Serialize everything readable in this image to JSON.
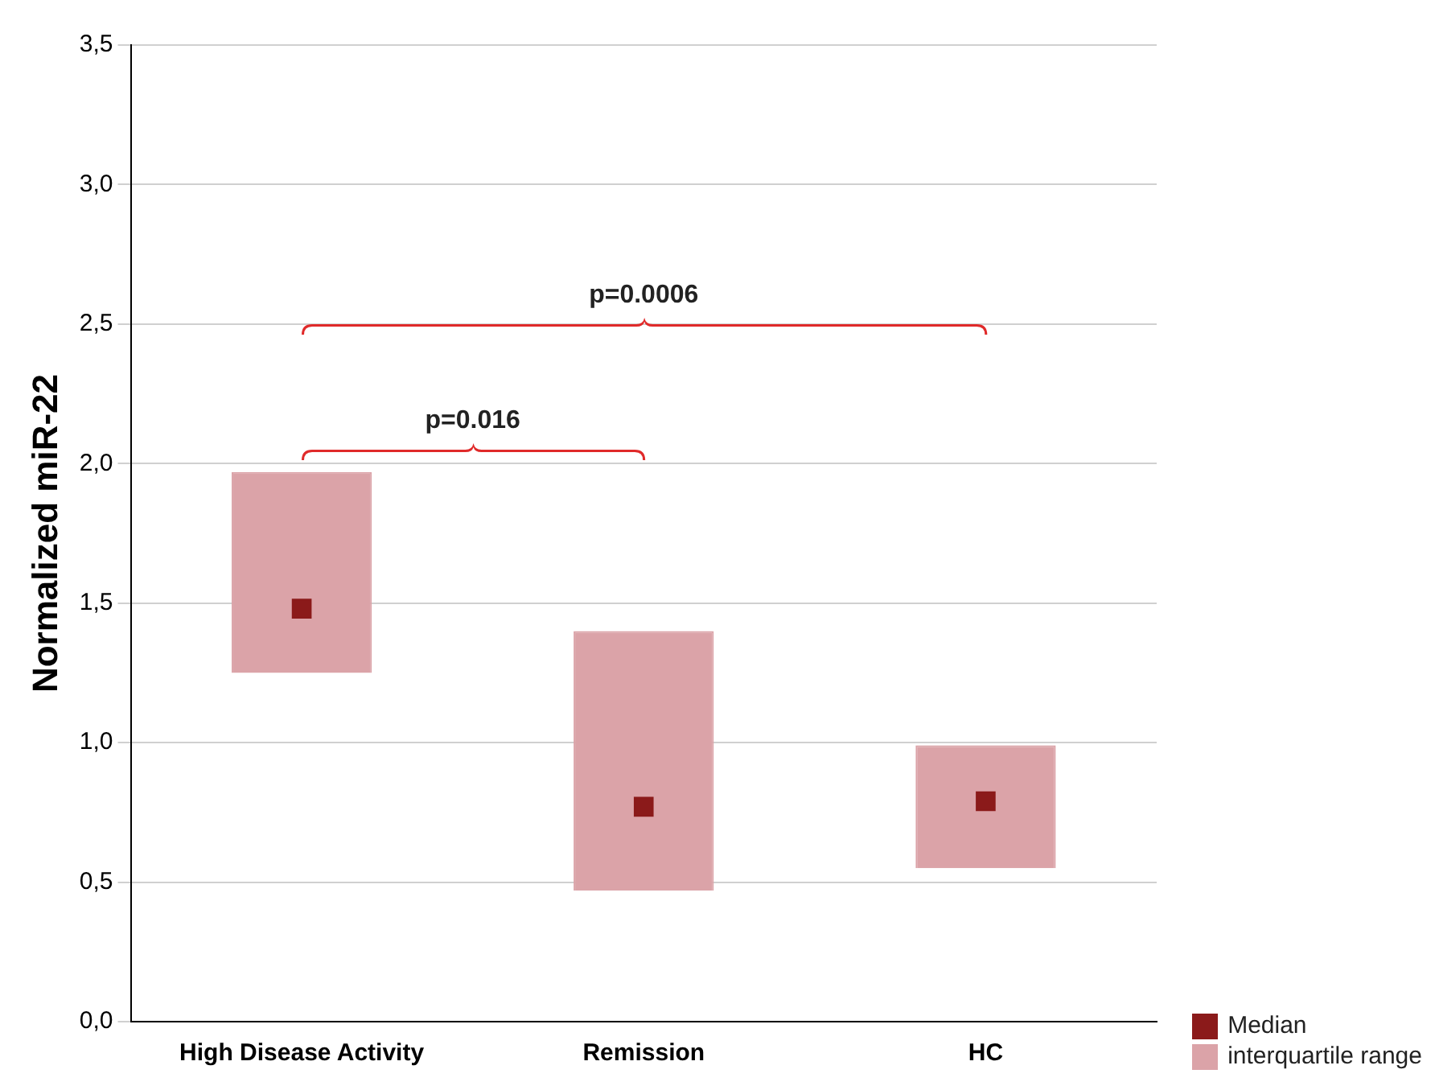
{
  "chart_data": {
    "type": "bar",
    "ylabel": "Normalized miR-22",
    "categories": [
      "High Disease Activity",
      "Remission",
      "HC"
    ],
    "series": [
      {
        "name": "interquartile range",
        "color": "#dba3a8",
        "base": [
          1.25,
          0.47,
          0.55
        ],
        "values": [
          0.72,
          0.93,
          0.44
        ]
      },
      {
        "type": "scatter",
        "name": "Median",
        "color": "#8b1a1a",
        "x": [
          "High Disease Activity",
          "Remission",
          "HC"
        ],
        "values": [
          1.48,
          0.77,
          0.79
        ]
      }
    ],
    "ylim": [
      0,
      3.5
    ],
    "yticks": [
      {
        "value": 0,
        "label": "0,0"
      },
      {
        "value": 0.5,
        "label": "0,5"
      },
      {
        "value": 1,
        "label": "1,0"
      },
      {
        "value": 1.5,
        "label": "1,5"
      },
      {
        "value": 2,
        "label": "2,0"
      },
      {
        "value": 2.5,
        "label": "2,5"
      },
      {
        "value": 3,
        "label": "3,0"
      },
      {
        "value": 3.5,
        "label": "3,5"
      }
    ],
    "grid": "y",
    "legend": "bottom right",
    "marker": "square",
    "annotations": [
      "p=0.016",
      "p=0.0006"
    ]
  }
}
